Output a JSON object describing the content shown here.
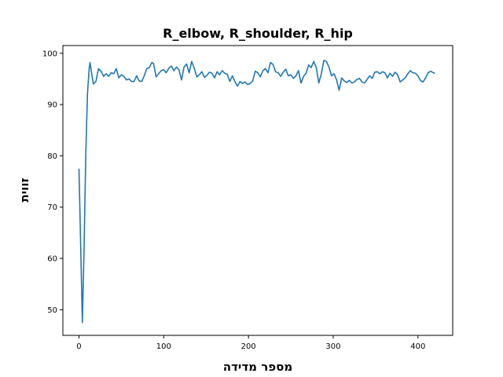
{
  "chart_data": {
    "type": "line",
    "title": "R_elbow, R_shoulder, R_hip",
    "xlabel": "מספר מדידה",
    "ylabel": "זווית",
    "xlim": [
      -19,
      441
    ],
    "ylim": [
      45,
      101.5
    ],
    "xticks": [
      0,
      100,
      200,
      300,
      400
    ],
    "yticks": [
      50,
      60,
      70,
      80,
      90,
      100
    ],
    "grid": false,
    "series": [
      {
        "color": "#1f77b4",
        "x": [
          0,
          4,
          6,
          8,
          10,
          12,
          13,
          15,
          17,
          20,
          23,
          26,
          29,
          32,
          35,
          38,
          41,
          44,
          47,
          50,
          53,
          56,
          59,
          62,
          65,
          68,
          71,
          74,
          77,
          80,
          83,
          86,
          88,
          91,
          94,
          97,
          100,
          103,
          106,
          109,
          112,
          115,
          118,
          121,
          124,
          127,
          130,
          133,
          136,
          139,
          142,
          145,
          148,
          151,
          154,
          157,
          160,
          163,
          166,
          169,
          172,
          175,
          178,
          181,
          184,
          187,
          190,
          193,
          196,
          199,
          202,
          205,
          208,
          211,
          214,
          217,
          220,
          223,
          226,
          229,
          232,
          235,
          238,
          241,
          244,
          247,
          250,
          253,
          256,
          259,
          262,
          265,
          268,
          271,
          274,
          277,
          280,
          283,
          286,
          289,
          292,
          295,
          298,
          301,
          304,
          307,
          310,
          313,
          316,
          319,
          322,
          325,
          328,
          331,
          334,
          337,
          340,
          343,
          346,
          349,
          352,
          355,
          358,
          361,
          364,
          367,
          370,
          373,
          376,
          379,
          382,
          385,
          388,
          391,
          394,
          397,
          400,
          403,
          406,
          409,
          412,
          415,
          418,
          420
        ],
        "y": [
          77.5,
          47.5,
          62,
          80,
          92,
          97,
          98.2,
          96,
          94,
          94.5,
          97,
          96.5,
          95.5,
          96,
          95.5,
          96.2,
          96,
          97,
          95.2,
          95.8,
          95.5,
          94.8,
          95,
          94.5,
          94.5,
          95.6,
          94.6,
          94.5,
          95.6,
          97,
          97.2,
          98.2,
          98,
          95.4,
          96,
          96.6,
          96.8,
          96.2,
          97.1,
          97.5,
          96.6,
          97.3,
          96.8,
          94.8,
          97.3,
          97.9,
          96.2,
          98.4,
          97.1,
          95.4,
          95.8,
          96.4,
          95.3,
          95.7,
          96.3,
          96.1,
          95.2,
          96.4,
          95.8,
          96.6,
          96.1,
          95.9,
          94.5,
          95.6,
          94.5,
          93.6,
          94.5,
          94.1,
          94.4,
          93.9,
          94.1,
          94.6,
          96.5,
          96.2,
          95.4,
          96.6,
          97,
          96.2,
          98.2,
          97.8,
          96.4,
          96.2,
          95.5,
          96.3,
          96.9,
          95.6,
          95.8,
          95.1,
          95.6,
          96.6,
          94.2,
          95.5,
          96.1,
          97.7,
          97.2,
          98.4,
          97.2,
          94.2,
          96,
          98.6,
          98.4,
          97.3,
          95.6,
          96,
          94.8,
          92.8,
          95.2,
          94.6,
          94.3,
          94.7,
          94.2,
          94.4,
          94.9,
          95.1,
          94.4,
          94.2,
          94.9,
          95.6,
          95.1,
          96.3,
          96.4,
          96,
          96.4,
          96.2,
          95.2,
          96.1,
          95.5,
          96.3,
          95.8,
          94.4,
          94.8,
          95.2,
          96,
          96.6,
          96.2,
          96.1,
          95.6,
          94.7,
          94.4,
          95.2,
          96.2,
          96.5,
          96.2,
          96.1
        ]
      }
    ]
  }
}
